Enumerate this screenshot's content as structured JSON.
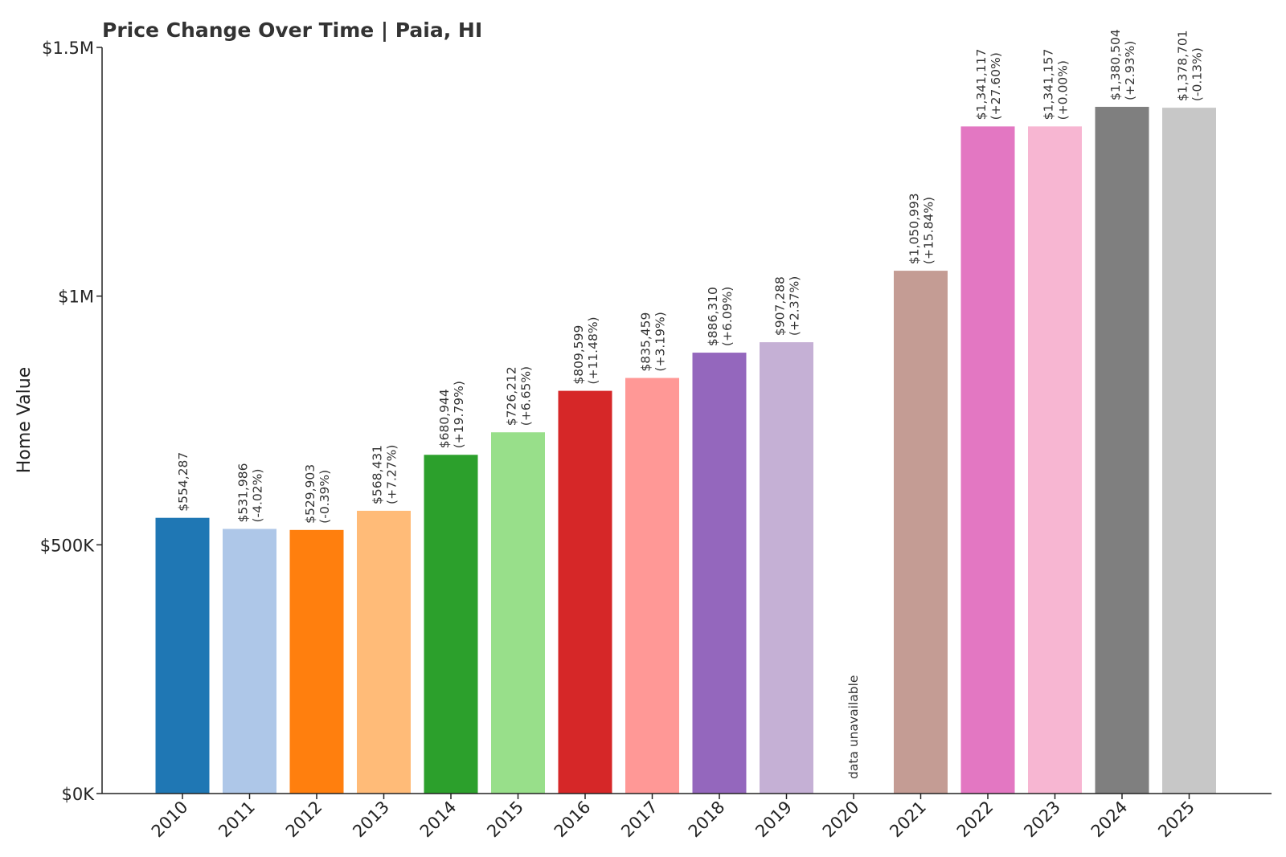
{
  "chart_data": {
    "type": "bar",
    "title": "Price Change Over Time | Paia, HI",
    "xlabel": "",
    "ylabel": "Home Value",
    "ylim": [
      0,
      1500000
    ],
    "yticks": [
      {
        "value": 0,
        "label": "$0K"
      },
      {
        "value": 500000,
        "label": "$500K"
      },
      {
        "value": 1000000,
        "label": "$1M"
      },
      {
        "value": 1500000,
        "label": "$1.5M"
      }
    ],
    "grid": false,
    "legend": "none",
    "categories": [
      "2010",
      "2011",
      "2012",
      "2013",
      "2014",
      "2015",
      "2016",
      "2017",
      "2018",
      "2019",
      "2020",
      "2021",
      "2022",
      "2023",
      "2024",
      "2025"
    ],
    "values": [
      554287,
      531986,
      529903,
      568431,
      680944,
      726212,
      809599,
      835459,
      886310,
      907288,
      null,
      1050993,
      1341117,
      1341157,
      1380504,
      1378701
    ],
    "value_labels": [
      "$554,287",
      "$531,986",
      "$529,903",
      "$568,431",
      "$680,944",
      "$726,212",
      "$809,599",
      "$835,459",
      "$886,310",
      "$907,288",
      "",
      "$1,050,993",
      "$1,341,117",
      "$1,341,157",
      "$1,380,504",
      "$1,378,701"
    ],
    "change_labels": [
      "",
      "(-4.02%)",
      "(-0.39%)",
      "(+7.27%)",
      "(+19.79%)",
      "(+6.65%)",
      "(+11.48%)",
      "(+3.19%)",
      "(+6.09%)",
      "(+2.37%)",
      "",
      "(+15.84%)",
      "(+27.60%)",
      "(+0.00%)",
      "(+2.93%)",
      "(-0.13%)"
    ],
    "missing_label": "data unavailable",
    "colors": [
      "#1f77b4",
      "#aec7e8",
      "#ff7f0e",
      "#ffbb78",
      "#2ca02c",
      "#98df8a",
      "#d62728",
      "#ff9896",
      "#9467bd",
      "#c5b0d5",
      "#8c564b",
      "#c49c94",
      "#e377c2",
      "#f7b6d2",
      "#7f7f7f",
      "#c7c7c7"
    ]
  }
}
